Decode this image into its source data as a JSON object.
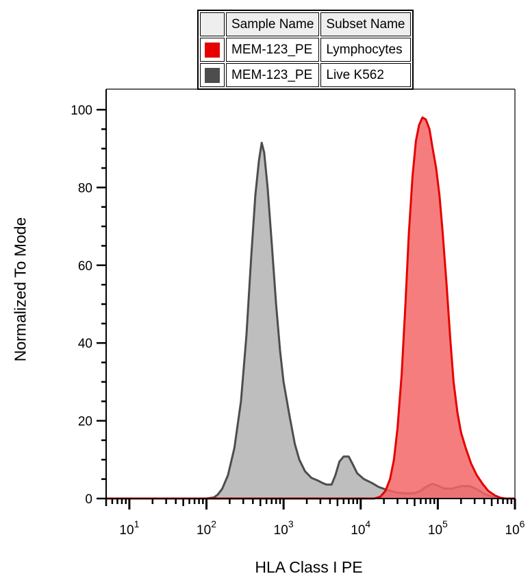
{
  "legend": {
    "header": [
      "Sample Name",
      "Subset Name"
    ],
    "rows": [
      {
        "sample": "MEM-123_PE",
        "subset": "Lymphocytes",
        "color": "#e60000"
      },
      {
        "sample": "MEM-123_PE",
        "subset": "Live K562",
        "color": "#4d4d4d"
      }
    ]
  },
  "chart_data": {
    "type": "area",
    "xlabel": "HLA Class I PE",
    "ylabel": "Normalized To Mode",
    "xscale": "log",
    "xlim": [
      5,
      1000000
    ],
    "ylim": [
      0,
      100
    ],
    "yticks": [
      0,
      20,
      40,
      60,
      80,
      100
    ],
    "xticks": [
      {
        "base": "10",
        "exp": "1",
        "value": 10
      },
      {
        "base": "10",
        "exp": "2",
        "value": 100
      },
      {
        "base": "10",
        "exp": "3",
        "value": 1000
      },
      {
        "base": "10",
        "exp": "4",
        "value": 10000
      },
      {
        "base": "10",
        "exp": "5",
        "value": 100000
      },
      {
        "base": "10",
        "exp": "6",
        "value": 1000000
      }
    ],
    "series": [
      {
        "name": "Live K562",
        "stroke": "#4d4d4d",
        "fill": "#b3b3b3",
        "points": [
          [
            5,
            0
          ],
          [
            100,
            0
          ],
          [
            125,
            0.3
          ],
          [
            140,
            1
          ],
          [
            160,
            2.5
          ],
          [
            190,
            6
          ],
          [
            230,
            13
          ],
          [
            280,
            25
          ],
          [
            330,
            42
          ],
          [
            380,
            62
          ],
          [
            430,
            78
          ],
          [
            480,
            87
          ],
          [
            520,
            91.5
          ],
          [
            560,
            89
          ],
          [
            620,
            80
          ],
          [
            700,
            66
          ],
          [
            800,
            50
          ],
          [
            900,
            38
          ],
          [
            1000,
            30
          ],
          [
            1200,
            21
          ],
          [
            1400,
            14
          ],
          [
            1600,
            10
          ],
          [
            1900,
            7
          ],
          [
            2300,
            5.3
          ],
          [
            2800,
            4.6
          ],
          [
            3200,
            4
          ],
          [
            3600,
            3.6
          ],
          [
            4200,
            3.6
          ],
          [
            4700,
            6
          ],
          [
            5300,
            9.5
          ],
          [
            6000,
            10.8
          ],
          [
            7000,
            10.8
          ],
          [
            7800,
            9
          ],
          [
            9000,
            6.5
          ],
          [
            11000,
            5
          ],
          [
            14000,
            4
          ],
          [
            17000,
            3
          ],
          [
            22000,
            2.2
          ],
          [
            30000,
            1.5
          ],
          [
            40000,
            1.3
          ],
          [
            50000,
            1.4
          ],
          [
            60000,
            2
          ],
          [
            70000,
            3
          ],
          [
            85000,
            3.8
          ],
          [
            100000,
            3.3
          ],
          [
            120000,
            2.6
          ],
          [
            150000,
            2.5
          ],
          [
            200000,
            3.2
          ],
          [
            260000,
            3.2
          ],
          [
            320000,
            2.4
          ],
          [
            400000,
            1.2
          ],
          [
            500000,
            0.5
          ],
          [
            600000,
            0.2
          ],
          [
            700000,
            0
          ],
          [
            1000000,
            0
          ]
        ]
      },
      {
        "name": "Lymphocytes",
        "stroke": "#e60000",
        "fill": "#f56666",
        "points": [
          [
            5,
            0
          ],
          [
            15000,
            0
          ],
          [
            18000,
            0.5
          ],
          [
            21000,
            2
          ],
          [
            24000,
            5
          ],
          [
            27000,
            10
          ],
          [
            30000,
            18
          ],
          [
            34000,
            32
          ],
          [
            38000,
            50
          ],
          [
            42000,
            68
          ],
          [
            47000,
            83
          ],
          [
            52000,
            92
          ],
          [
            57000,
            96
          ],
          [
            63000,
            98
          ],
          [
            70000,
            97.5
          ],
          [
            78000,
            95
          ],
          [
            85000,
            90.5
          ],
          [
            95000,
            85
          ],
          [
            105000,
            78
          ],
          [
            115000,
            69
          ],
          [
            130000,
            55
          ],
          [
            145000,
            41
          ],
          [
            160000,
            30
          ],
          [
            180000,
            22
          ],
          [
            200000,
            17
          ],
          [
            230000,
            13
          ],
          [
            270000,
            9
          ],
          [
            320000,
            6
          ],
          [
            380000,
            3.8
          ],
          [
            450000,
            2
          ],
          [
            550000,
            0.8
          ],
          [
            650000,
            0.2
          ],
          [
            750000,
            0
          ],
          [
            1000000,
            0
          ]
        ]
      }
    ]
  }
}
